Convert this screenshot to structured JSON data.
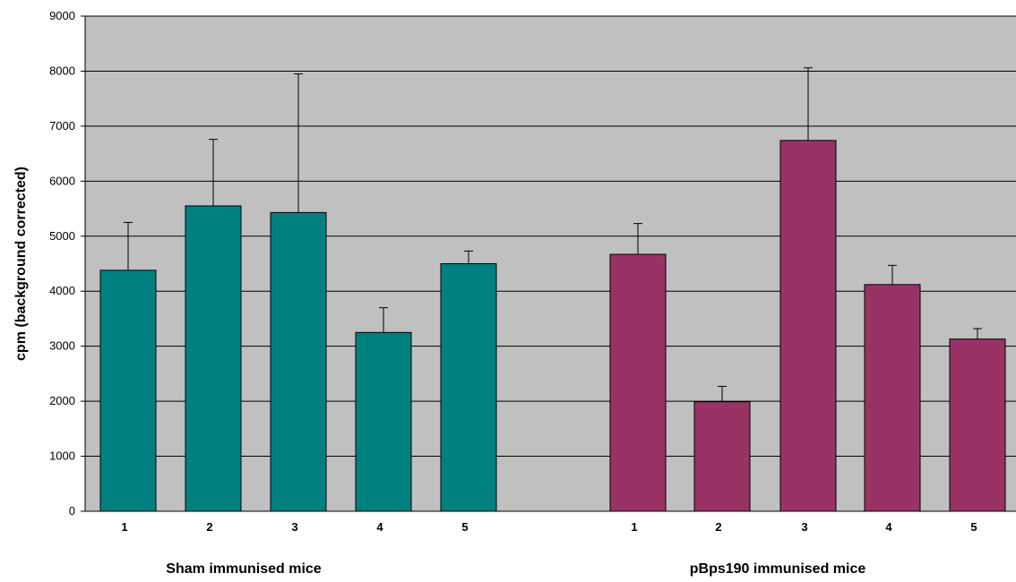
{
  "chart_data": {
    "type": "bar",
    "ylabel": "cpm (background corrected)",
    "ylim": [
      0,
      9000
    ],
    "yticks": [
      0,
      1000,
      2000,
      3000,
      4000,
      5000,
      6000,
      7000,
      8000,
      9000
    ],
    "grid": true,
    "plot_background": "#c0c0c0",
    "groups": [
      {
        "label": "Sham immunised mice",
        "color": "#008080",
        "categories": [
          "1",
          "2",
          "3",
          "4",
          "5"
        ],
        "values": [
          4380,
          5550,
          5430,
          3250,
          4500
        ],
        "error_upper": [
          5250,
          6760,
          7950,
          3700,
          4730
        ]
      },
      {
        "label": "pBps190 immunised mice",
        "color": "#993366",
        "categories": [
          "1",
          "2",
          "3",
          "4",
          "5"
        ],
        "values": [
          4670,
          1990,
          6740,
          4120,
          3130
        ],
        "error_upper": [
          5230,
          2270,
          8060,
          4470,
          3320
        ]
      }
    ]
  }
}
